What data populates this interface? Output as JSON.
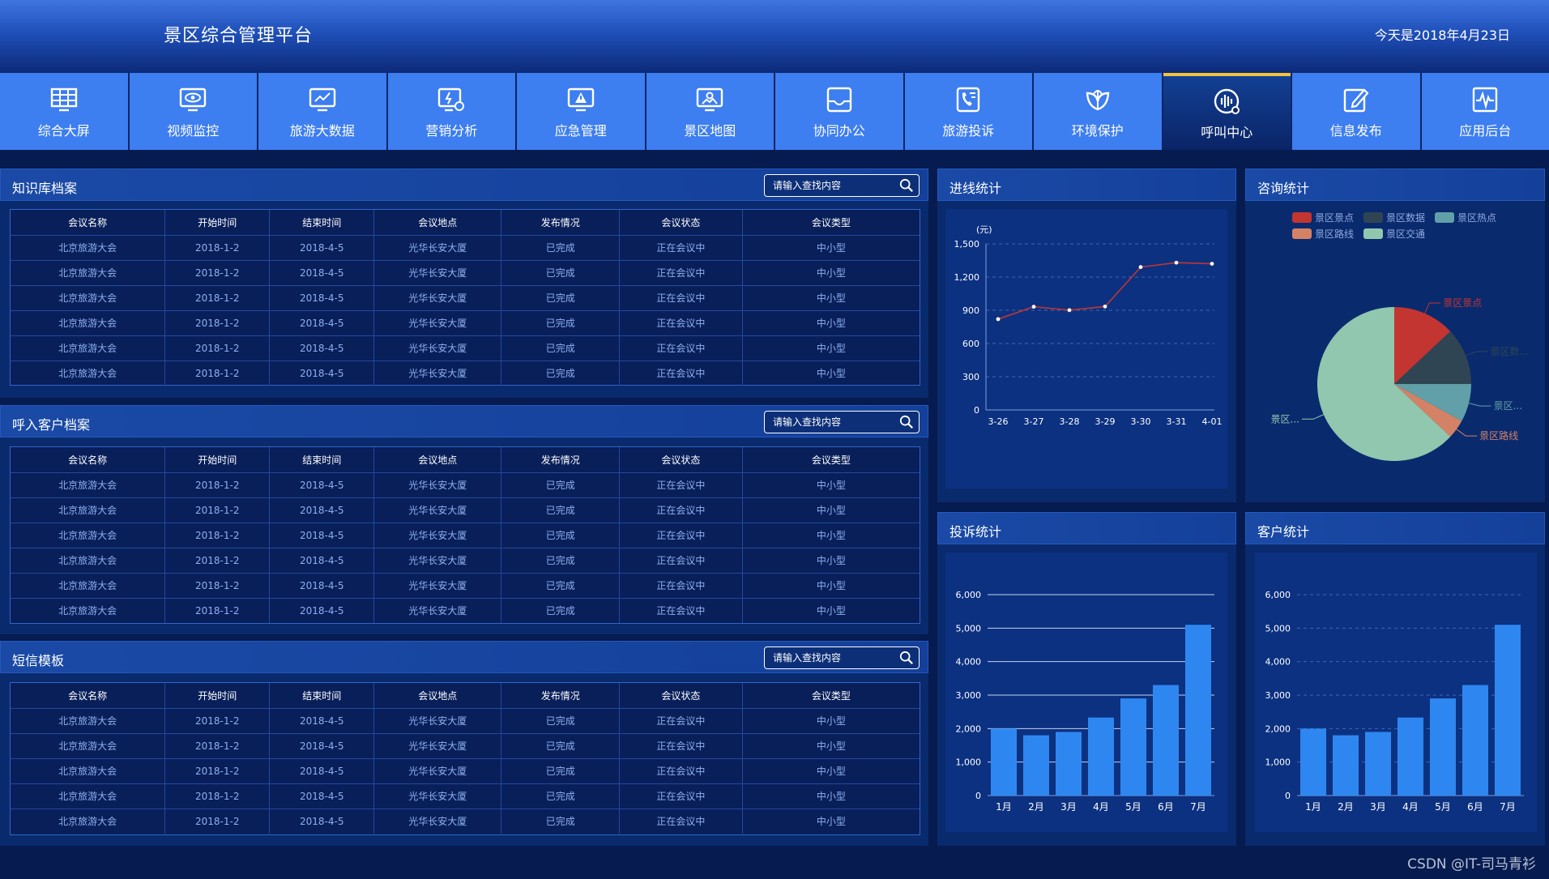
{
  "header": {
    "title": "景区综合管理平台",
    "date": "今天是2018年4月23日"
  },
  "nav": [
    {
      "label": "综合大屏",
      "icon": "monitor-grid-icon"
    },
    {
      "label": "视频监控",
      "icon": "eye-monitor-icon"
    },
    {
      "label": "旅游大数据",
      "icon": "chart-monitor-icon"
    },
    {
      "label": "营销分析",
      "icon": "analysis-icon"
    },
    {
      "label": "应急管理",
      "icon": "warning-monitor-icon"
    },
    {
      "label": "景区地图",
      "icon": "map-monitor-icon"
    },
    {
      "label": "协同办公",
      "icon": "inbox-icon"
    },
    {
      "label": "旅游投诉",
      "icon": "phone-document-icon"
    },
    {
      "label": "环境保护",
      "icon": "leaf-icon"
    },
    {
      "label": "呼叫中心",
      "icon": "headset-icon",
      "active": true
    },
    {
      "label": "信息发布",
      "icon": "edit-icon"
    },
    {
      "label": "应用后台",
      "icon": "pulse-icon"
    }
  ],
  "search_placeholder": "请输入查找内容",
  "table_columns": [
    "会议名称",
    "开始时间",
    "结束时间",
    "会议地点",
    "发布情况",
    "会议状态",
    "会议类型"
  ],
  "knowledge": {
    "title": "知识库档案",
    "rows": [
      [
        "北京旅游大会",
        "2018-1-2",
        "2018-4-5",
        "光华长安大厦",
        "已完成",
        "正在会议中",
        "中小型"
      ],
      [
        "北京旅游大会",
        "2018-1-2",
        "2018-4-5",
        "光华长安大厦",
        "已完成",
        "正在会议中",
        "中小型"
      ],
      [
        "北京旅游大会",
        "2018-1-2",
        "2018-4-5",
        "光华长安大厦",
        "已完成",
        "正在会议中",
        "中小型"
      ],
      [
        "北京旅游大会",
        "2018-1-2",
        "2018-4-5",
        "光华长安大厦",
        "已完成",
        "正在会议中",
        "中小型"
      ],
      [
        "北京旅游大会",
        "2018-1-2",
        "2018-4-5",
        "光华长安大厦",
        "已完成",
        "正在会议中",
        "中小型"
      ],
      [
        "北京旅游大会",
        "2018-1-2",
        "2018-4-5",
        "光华长安大厦",
        "已完成",
        "正在会议中",
        "中小型"
      ]
    ]
  },
  "customers": {
    "title": "呼入客户档案",
    "rows": [
      [
        "北京旅游大会",
        "2018-1-2",
        "2018-4-5",
        "光华长安大厦",
        "已完成",
        "正在会议中",
        "中小型"
      ],
      [
        "北京旅游大会",
        "2018-1-2",
        "2018-4-5",
        "光华长安大厦",
        "已完成",
        "正在会议中",
        "中小型"
      ],
      [
        "北京旅游大会",
        "2018-1-2",
        "2018-4-5",
        "光华长安大厦",
        "已完成",
        "正在会议中",
        "中小型"
      ],
      [
        "北京旅游大会",
        "2018-1-2",
        "2018-4-5",
        "光华长安大厦",
        "已完成",
        "正在会议中",
        "中小型"
      ],
      [
        "北京旅游大会",
        "2018-1-2",
        "2018-4-5",
        "光华长安大厦",
        "已完成",
        "正在会议中",
        "中小型"
      ],
      [
        "北京旅游大会",
        "2018-1-2",
        "2018-4-5",
        "光华长安大厦",
        "已完成",
        "正在会议中",
        "中小型"
      ]
    ]
  },
  "sms": {
    "title": "短信模板",
    "rows": [
      [
        "北京旅游大会",
        "2018-1-2",
        "2018-4-5",
        "光华长安大厦",
        "已完成",
        "正在会议中",
        "中小型"
      ],
      [
        "北京旅游大会",
        "2018-1-2",
        "2018-4-5",
        "光华长安大厦",
        "已完成",
        "正在会议中",
        "中小型"
      ],
      [
        "北京旅游大会",
        "2018-1-2",
        "2018-4-5",
        "光华长安大厦",
        "已完成",
        "正在会议中",
        "中小型"
      ],
      [
        "北京旅游大会",
        "2018-1-2",
        "2018-4-5",
        "光华长安大厦",
        "已完成",
        "正在会议中",
        "中小型"
      ],
      [
        "北京旅游大会",
        "2018-1-2",
        "2018-4-5",
        "光华长安大厦",
        "已完成",
        "正在会议中",
        "中小型"
      ]
    ]
  },
  "panels": {
    "line_title": "进线统计",
    "pie_title": "咨询统计",
    "complaint_title": "投诉统计",
    "customer_title": "客户统计"
  },
  "chart_data": [
    {
      "type": "line",
      "unit_label": "(元)",
      "x": [
        "3-26",
        "3-27",
        "3-28",
        "3-29",
        "3-30",
        "3-31",
        "4-01"
      ],
      "values": [
        820,
        932,
        901,
        934,
        1290,
        1330,
        1320
      ],
      "yticks": [
        0,
        300,
        600,
        900,
        1200,
        1500
      ],
      "ytick_labels": [
        "0",
        "300",
        "600",
        "900",
        "1,200",
        "1,500"
      ],
      "ylim": [
        0,
        1500
      ],
      "color": "#c23531",
      "grid": true
    },
    {
      "type": "pie",
      "legend": [
        "景区景点",
        "景区数据",
        "景区热点",
        "景区路线",
        "景区交通"
      ],
      "values": [
        13,
        12,
        8,
        4,
        63
      ],
      "colors": [
        "#c23531",
        "#2f4554",
        "#61a0a8",
        "#d48265",
        "#91c7ae"
      ],
      "outer_labels": [
        "景区景点",
        "景区数...",
        "景区...",
        "景区路线",
        "景区..."
      ]
    },
    {
      "type": "bar",
      "categories": [
        "1月",
        "2月",
        "3月",
        "4月",
        "5月",
        "6月",
        "7月"
      ],
      "values": [
        2000,
        1800,
        1900,
        2330,
        2900,
        3300,
        5100
      ],
      "yticks": [
        0,
        1000,
        2000,
        3000,
        4000,
        5000,
        6000
      ],
      "ytick_labels": [
        "0",
        "1,000",
        "2,000",
        "3,000",
        "4,000",
        "5,000",
        "6,000"
      ],
      "ylim": [
        0,
        6000
      ],
      "color": "#2e87f0",
      "grid": "solid"
    },
    {
      "type": "bar",
      "categories": [
        "1月",
        "2月",
        "3月",
        "4月",
        "5月",
        "6月",
        "7月"
      ],
      "values": [
        2000,
        1800,
        1900,
        2330,
        2900,
        3300,
        5100
      ],
      "yticks": [
        0,
        1000,
        2000,
        3000,
        4000,
        5000,
        6000
      ],
      "ytick_labels": [
        "0",
        "1,000",
        "2,000",
        "3,000",
        "4,000",
        "5,000",
        "6,000"
      ],
      "ylim": [
        0,
        6000
      ],
      "color": "#2e87f0",
      "grid": "dashed"
    }
  ],
  "watermark": "CSDN @IT-司马青衫"
}
